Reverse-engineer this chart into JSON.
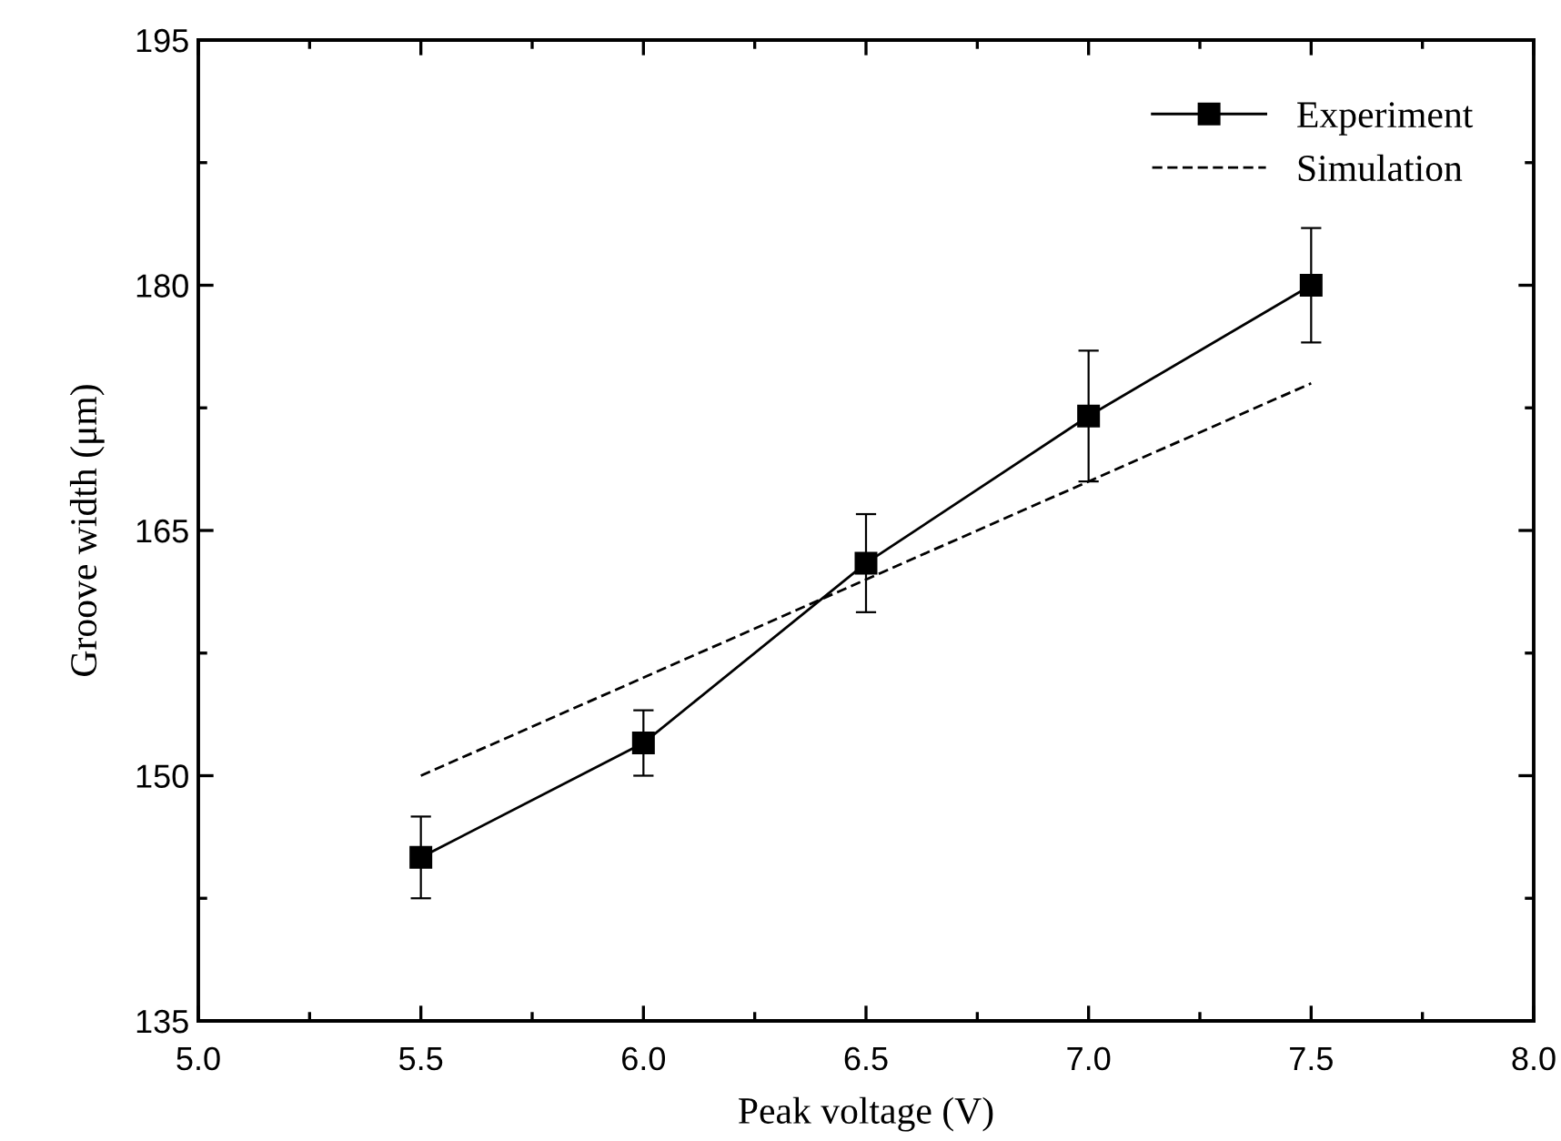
{
  "chart_data": {
    "type": "line",
    "xlabel": "Peak voltage (V)",
    "ylabel": "Groove width (μm)",
    "x": [
      5.5,
      6.0,
      6.5,
      7.0,
      7.5
    ],
    "series": [
      {
        "name": "Experiment",
        "color": "#000000",
        "values": [
          145,
          152,
          163,
          172,
          180
        ],
        "errors": [
          2.5,
          2,
          3,
          4,
          3.5
        ],
        "marker": "square",
        "line_style": "solid"
      },
      {
        "name": "Simulation",
        "color": "#000000",
        "x": [
          5.5,
          7.5
        ],
        "values": [
          150,
          174
        ],
        "marker": "none",
        "line_style": "dashed"
      }
    ],
    "xlim": [
      5.0,
      8.0
    ],
    "xticks": [
      {
        "value": 5.0,
        "label": "5.0"
      },
      5.5,
      {
        "value": 6.0,
        "label": "6.0"
      },
      6.5,
      {
        "value": 7.0,
        "label": "7.0"
      },
      7.5,
      {
        "value": 8.0,
        "label": "8.0"
      }
    ],
    "ylim": [
      135,
      195
    ],
    "yticks": [
      135,
      150,
      165,
      180,
      195
    ],
    "grid": false,
    "legend": "top right"
  }
}
